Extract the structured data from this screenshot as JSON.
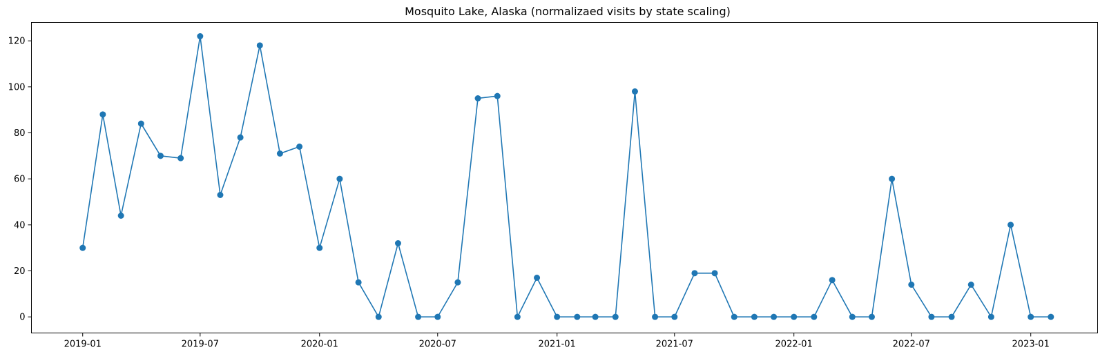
{
  "chart_data": {
    "type": "line",
    "title": "Mosquito Lake, Alaska (normalizaed visits by state scaling)",
    "xlabel": "",
    "ylabel": "",
    "x_range": [
      "2018-10-14",
      "2023-04-14"
    ],
    "ylim": [
      -7,
      128
    ],
    "x_ticks": [
      "2019-01",
      "2019-07",
      "2020-01",
      "2020-07",
      "2021-01",
      "2021-07",
      "2022-01",
      "2022-07",
      "2023-01"
    ],
    "y_ticks": [
      0,
      20,
      40,
      60,
      80,
      100,
      120
    ],
    "grid": false,
    "legend": "none",
    "marker": "circle",
    "color": "#1f77b4",
    "series": [
      {
        "x": [
          "2019-01",
          "2019-02",
          "2019-03",
          "2019-04",
          "2019-05",
          "2019-06",
          "2019-07",
          "2019-08",
          "2019-09",
          "2019-10",
          "2019-11",
          "2019-12",
          "2020-01",
          "2020-02",
          "2020-03",
          "2020-04",
          "2020-05",
          "2020-06",
          "2020-07",
          "2020-08",
          "2020-09",
          "2020-10",
          "2020-11",
          "2020-12",
          "2021-01",
          "2021-02",
          "2021-03",
          "2021-04",
          "2021-05",
          "2021-06",
          "2021-07",
          "2021-08",
          "2021-09",
          "2021-10",
          "2021-11",
          "2021-12",
          "2022-01",
          "2022-02",
          "2022-03",
          "2022-04",
          "2022-05",
          "2022-06",
          "2022-07",
          "2022-08",
          "2022-09",
          "2022-10",
          "2022-11",
          "2022-12",
          "2023-01",
          "2023-02"
        ],
        "values": [
          30,
          88,
          44,
          84,
          70,
          69,
          122,
          53,
          78,
          118,
          71,
          74,
          30,
          60,
          15,
          0,
          32,
          0,
          0,
          15,
          95,
          96,
          0,
          17,
          0,
          0,
          0,
          0,
          98,
          0,
          0,
          19,
          19,
          0,
          0,
          0,
          0,
          0,
          16,
          0,
          0,
          60,
          14,
          0,
          0,
          14,
          0,
          40,
          0,
          0
        ]
      }
    ]
  }
}
